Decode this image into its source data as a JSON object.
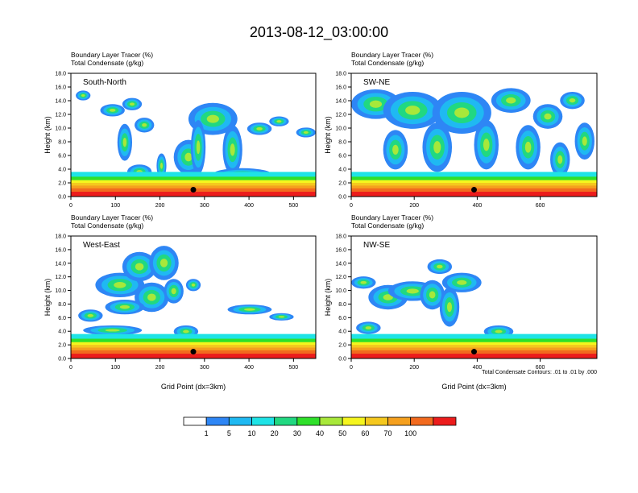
{
  "title": "2013-08-12_03:00:00",
  "legend": {
    "levels": [
      "1",
      "5",
      "10",
      "20",
      "30",
      "40",
      "50",
      "60",
      "70",
      "100"
    ],
    "colors": [
      "#ffffff",
      "#2e86f5",
      "#1fb9f2",
      "#1ee3e6",
      "#21d881",
      "#2fe02a",
      "#a8e83a",
      "#f5f51e",
      "#f5c81e",
      "#f5a01e",
      "#f26a1e",
      "#ec1c1c"
    ]
  },
  "contour_note": "Total Condensate Contours: .01 to .01 by .000",
  "chart_data": [
    {
      "type": "heatmap",
      "panel_label": "South-North",
      "header_lines": [
        "Boundary Layer Tracer    (%)",
        "Total Condensate   (g/kg)"
      ],
      "ylabel": "Height (km)",
      "xlabel": "",
      "xlim": [
        0,
        550
      ],
      "ylim": [
        0,
        18
      ],
      "xticks": [
        0,
        100,
        200,
        300,
        400,
        500
      ],
      "yticks": [
        "0.0",
        "2.0",
        "4.0",
        "6.0",
        "8.0",
        "10.0",
        "12.0",
        "14.0",
        "16.0",
        "18.0"
      ],
      "marker": [
        275,
        1.0
      ]
    },
    {
      "type": "heatmap",
      "panel_label": "SW-NE",
      "header_lines": [
        "Boundary Layer Tracer    (%)",
        "Total Condensate   (g/kg)"
      ],
      "ylabel": "Height (km)",
      "xlabel": "",
      "xlim": [
        0,
        780
      ],
      "ylim": [
        0,
        18
      ],
      "xticks": [
        0,
        200,
        400,
        600
      ],
      "yticks": [
        "0.0",
        "2.0",
        "4.0",
        "6.0",
        "8.0",
        "10.0",
        "12.0",
        "14.0",
        "16.0",
        "18.0"
      ],
      "marker": [
        390,
        1.0
      ]
    },
    {
      "type": "heatmap",
      "panel_label": "West-East",
      "header_lines": [
        "Boundary Layer Tracer    (%)",
        "Total Condensate   (g/kg)"
      ],
      "ylabel": "Height (km)",
      "xlabel": "Grid Point (dx=3km)",
      "xlim": [
        0,
        550
      ],
      "ylim": [
        0,
        18
      ],
      "xticks": [
        0,
        100,
        200,
        300,
        400,
        500
      ],
      "yticks": [
        "0.0",
        "2.0",
        "4.0",
        "6.0",
        "8.0",
        "10.0",
        "12.0",
        "14.0",
        "16.0",
        "18.0"
      ],
      "marker": [
        275,
        1.0
      ]
    },
    {
      "type": "heatmap",
      "panel_label": "NW-SE",
      "header_lines": [
        "Boundary Layer Tracer    (%)",
        "Total Condensate   (g/kg)"
      ],
      "ylabel": "Height (km)",
      "xlabel": "Grid Point (dx=3km)",
      "xlim": [
        0,
        780
      ],
      "ylim": [
        0,
        18
      ],
      "xticks": [
        0,
        200,
        400,
        600
      ],
      "yticks": [
        "0.0",
        "2.0",
        "4.0",
        "6.0",
        "8.0",
        "10.0",
        "12.0",
        "14.0",
        "16.0",
        "18.0"
      ],
      "marker": [
        390,
        1.0
      ]
    }
  ]
}
